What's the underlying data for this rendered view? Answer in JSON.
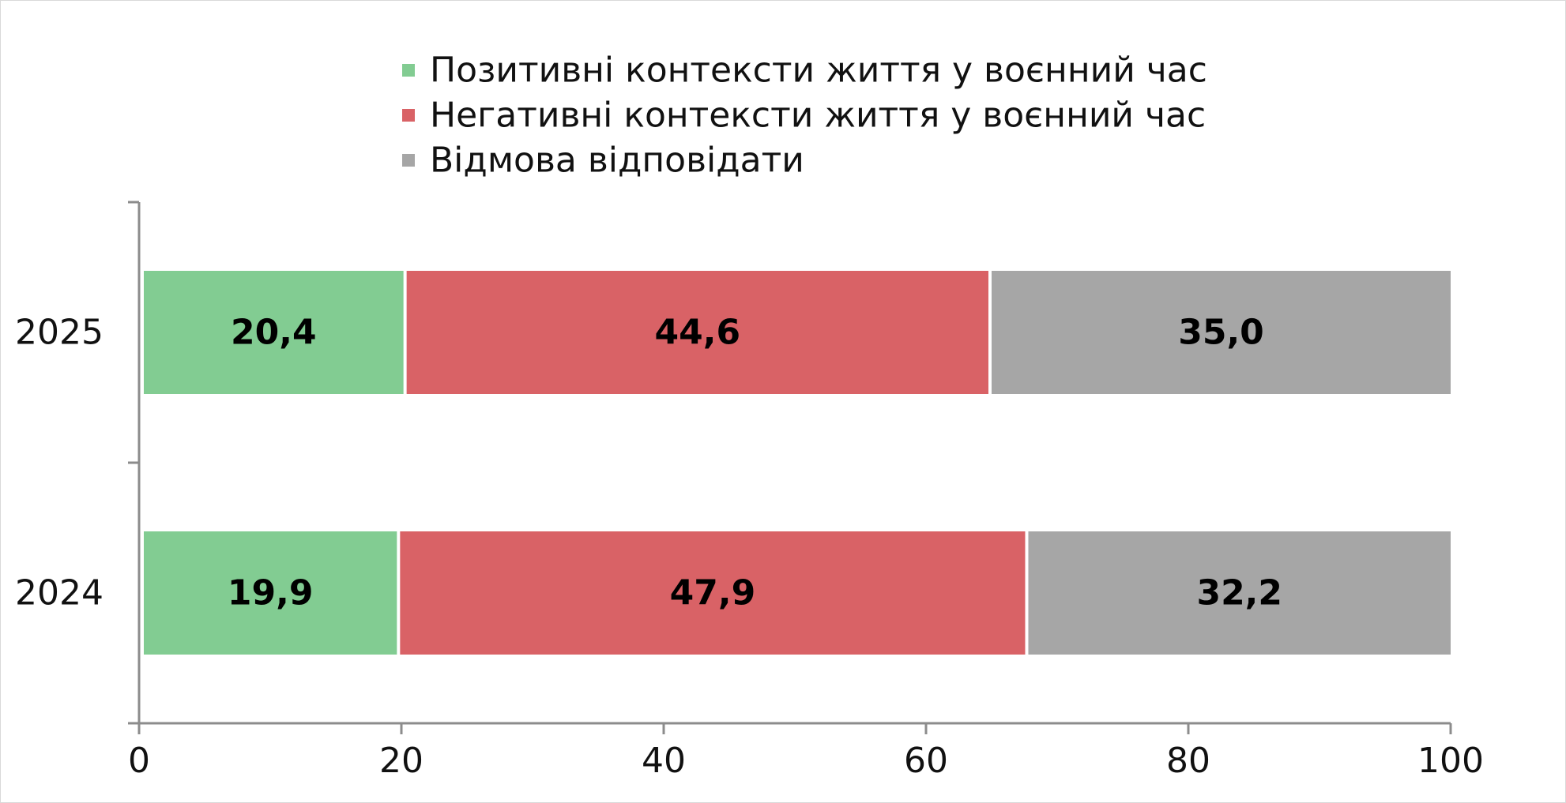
{
  "chart_data": {
    "type": "bar",
    "orientation": "horizontal",
    "stacked": true,
    "categories": [
      "2025",
      "2024"
    ],
    "series": [
      {
        "name": "Позитивні контексти життя у воєнний час",
        "color": "#82cc92",
        "values": [
          20.4,
          19.9
        ],
        "labels": [
          "20,4",
          "19,9"
        ]
      },
      {
        "name": "Негативні контексти життя у воєнний час",
        "color": "#d96266",
        "values": [
          44.6,
          47.9
        ],
        "labels": [
          "44,6",
          "47,9"
        ]
      },
      {
        "name": "Відмова відповідати",
        "color": "#a6a6a6",
        "values": [
          35.0,
          32.2
        ],
        "labels": [
          "35,0",
          "32,2"
        ]
      }
    ],
    "xlim": [
      0,
      100
    ],
    "xticks": [
      0,
      20,
      40,
      60,
      80,
      100
    ],
    "xtick_labels": [
      "0",
      "20",
      "40",
      "60",
      "80",
      "100"
    ],
    "grid": false,
    "legend_position": "top-center",
    "axis_color": "#8c8c8c"
  }
}
